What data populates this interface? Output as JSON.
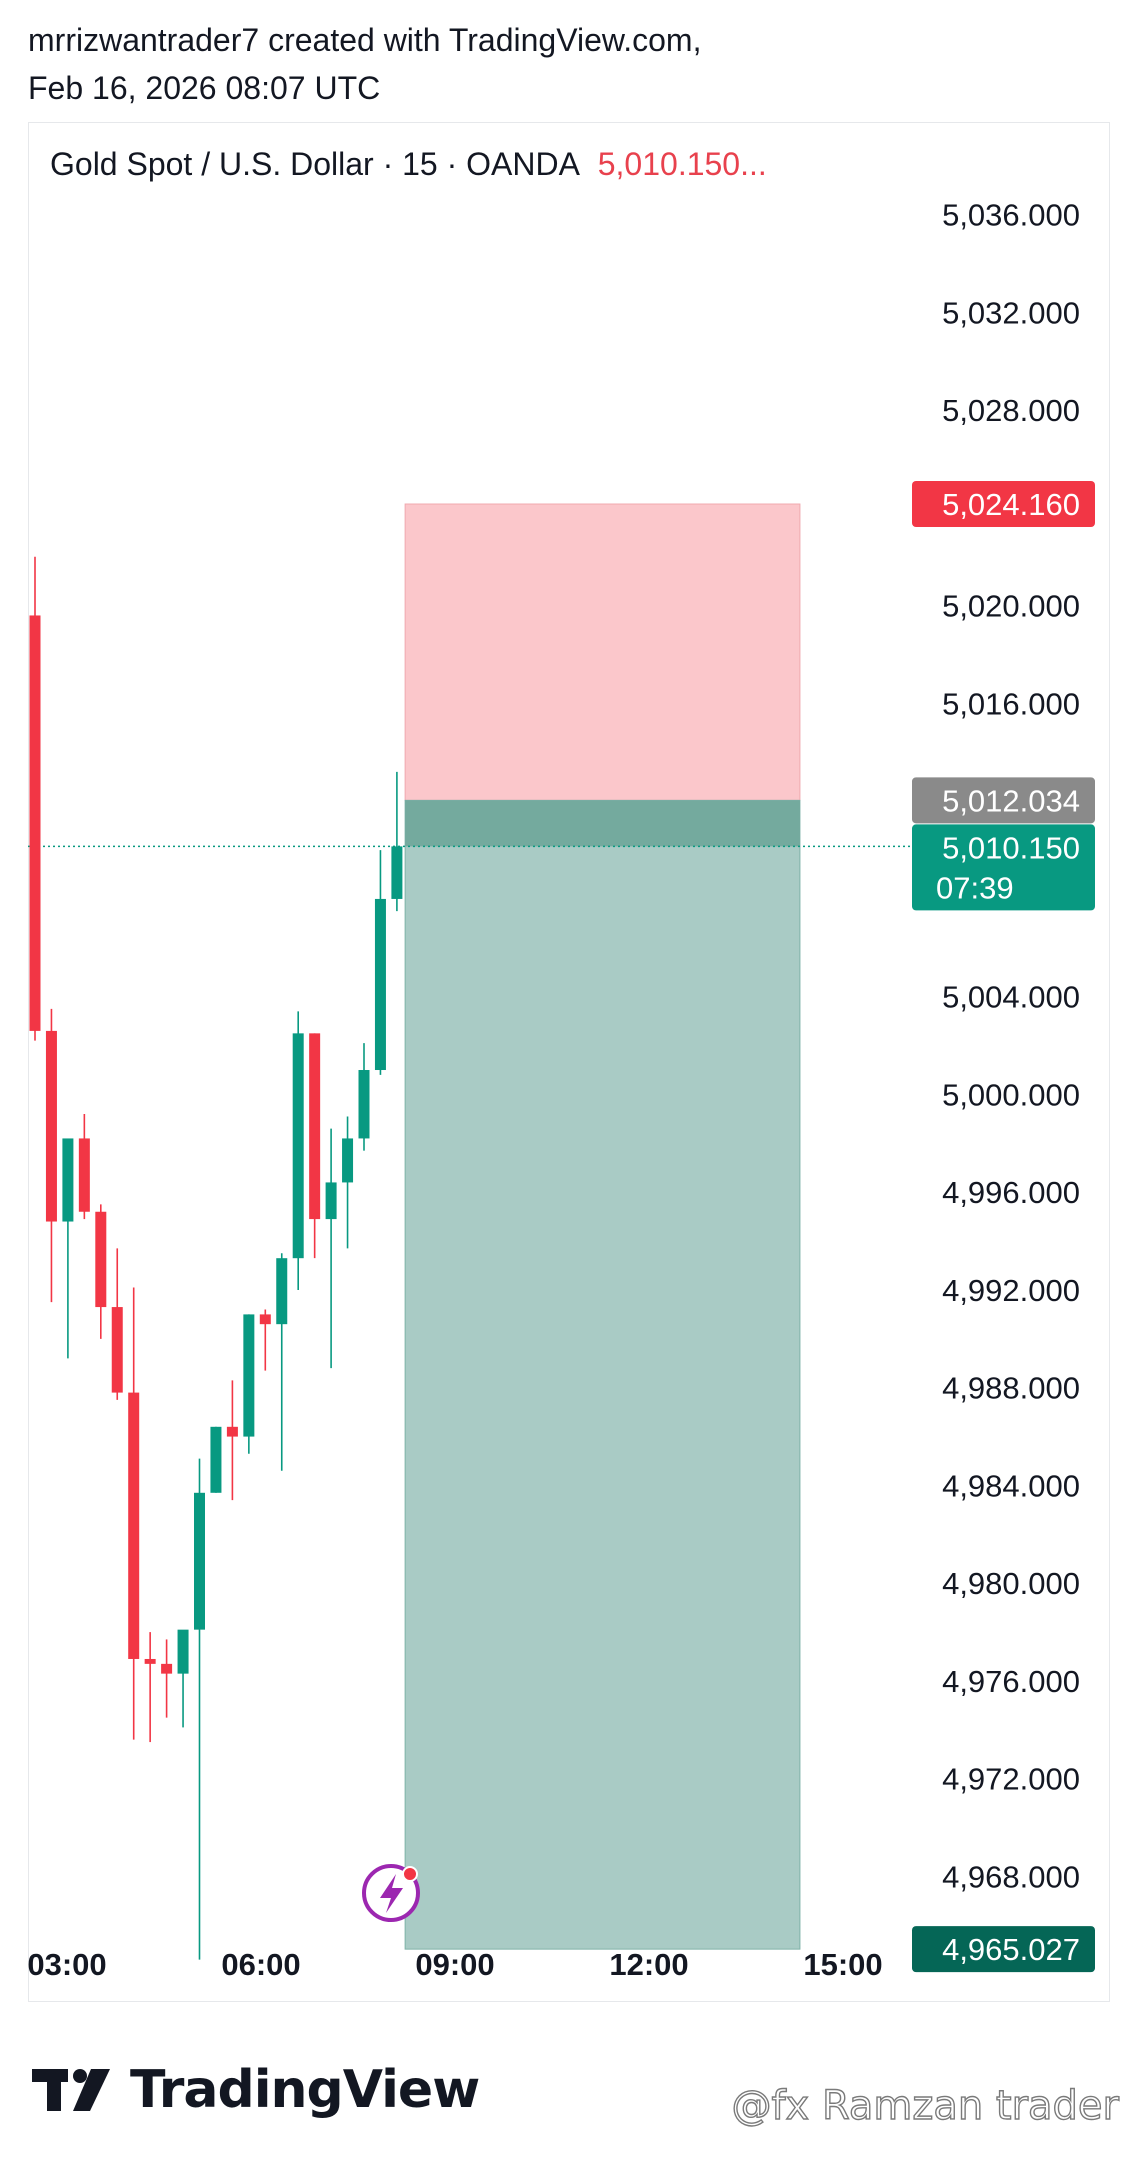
{
  "header": {
    "line1": "mrrizwantrader7 created with TradingView.com,",
    "line2": "Feb 16, 2026 08:07 UTC"
  },
  "symbol": {
    "name": "Gold Spot / U.S. Dollar · 15 · OANDA",
    "price": "5,010.150..."
  },
  "brand": {
    "name": "TradingView"
  },
  "watermark": "@fx Ramzan trader",
  "colors": {
    "up": "#089981",
    "down": "#f23645",
    "target_zone": "#a9cbc5",
    "stop_zone": "#fbc7cb",
    "entry_zone": "#74aa9e",
    "price_badge": "#089981",
    "stop_badge": "#f23645",
    "entry_badge": "#8a8a8a",
    "target_badge": "#056656"
  },
  "chart_data": {
    "type": "candlestick",
    "title": "Gold Spot / U.S. Dollar · 15 · OANDA",
    "x_ticks": [
      "03:00",
      "06:00",
      "09:00",
      "12:00",
      "15:00"
    ],
    "y_ticks": [
      "5,036.000",
      "5,032.000",
      "5,028.000",
      "5,020.000",
      "5,016.000",
      "5,004.000",
      "5,000.000",
      "4,996.000",
      "4,992.000",
      "4,988.000",
      "4,984.000",
      "4,980.000",
      "4,976.000",
      "4,972.000",
      "4,968.000"
    ],
    "y_tick_values": [
      5036,
      5032,
      5028,
      5020,
      5016,
      5004,
      5000,
      4996,
      4992,
      4988,
      4984,
      4980,
      4976,
      4972,
      4968
    ],
    "ylim": [
      4961.8,
      5036.6
    ],
    "candles": [
      {
        "o": 5019.6,
        "h": 5022.0,
        "l": 5002.2,
        "c": 5002.6
      },
      {
        "o": 5002.6,
        "h": 5003.5,
        "l": 4991.5,
        "c": 4994.8
      },
      {
        "o": 4994.8,
        "h": 4998.2,
        "l": 4989.2,
        "c": 4998.2
      },
      {
        "o": 4998.2,
        "h": 4999.2,
        "l": 4994.9,
        "c": 4995.2
      },
      {
        "o": 4995.2,
        "h": 4995.5,
        "l": 4990.0,
        "c": 4991.3
      },
      {
        "o": 4991.3,
        "h": 4993.7,
        "l": 4987.5,
        "c": 4987.8
      },
      {
        "o": 4987.8,
        "h": 4992.1,
        "l": 4973.6,
        "c": 4976.9
      },
      {
        "o": 4976.9,
        "h": 4978.0,
        "l": 4973.5,
        "c": 4976.7
      },
      {
        "o": 4976.7,
        "h": 4977.7,
        "l": 4974.5,
        "c": 4976.3
      },
      {
        "o": 4976.3,
        "h": 4977.9,
        "l": 4974.1,
        "c": 4978.1
      },
      {
        "o": 4978.1,
        "h": 4985.1,
        "l": 4964.6,
        "c": 4983.7
      },
      {
        "o": 4983.7,
        "h": 4986.4,
        "l": 4983.7,
        "c": 4986.4
      },
      {
        "o": 4986.4,
        "h": 4988.3,
        "l": 4983.4,
        "c": 4986.0
      },
      {
        "o": 4986.0,
        "h": 4991.0,
        "l": 4985.3,
        "c": 4991.0
      },
      {
        "o": 4991.0,
        "h": 4991.2,
        "l": 4988.7,
        "c": 4990.6
      },
      {
        "o": 4990.6,
        "h": 4993.5,
        "l": 4984.6,
        "c": 4993.3
      },
      {
        "o": 4993.3,
        "h": 5003.4,
        "l": 4992.0,
        "c": 5002.5
      },
      {
        "o": 5002.5,
        "h": 5002.5,
        "l": 4993.3,
        "c": 4994.9
      },
      {
        "o": 4994.9,
        "h": 4998.6,
        "l": 4988.8,
        "c": 4996.4
      },
      {
        "o": 4996.4,
        "h": 4999.1,
        "l": 4993.7,
        "c": 4998.2
      },
      {
        "o": 4998.2,
        "h": 5002.1,
        "l": 4997.7,
        "c": 5001.0
      },
      {
        "o": 5001.0,
        "h": 5010.0,
        "l": 5000.8,
        "c": 5008.0
      },
      {
        "o": 5008.0,
        "h": 5013.2,
        "l": 5007.5,
        "c": 5010.15
      }
    ],
    "position": {
      "type": "short",
      "stop": 5024.16,
      "entry": 5012.034,
      "target": 4965.027,
      "start_candle": 22.5,
      "end_candle": 46.5
    },
    "labels": {
      "stop": "5,024.160",
      "entry": "5,012.034",
      "current_price": "5,010.150",
      "countdown": "07:39",
      "target": "4,965.027"
    },
    "current_price": 5010.15
  }
}
